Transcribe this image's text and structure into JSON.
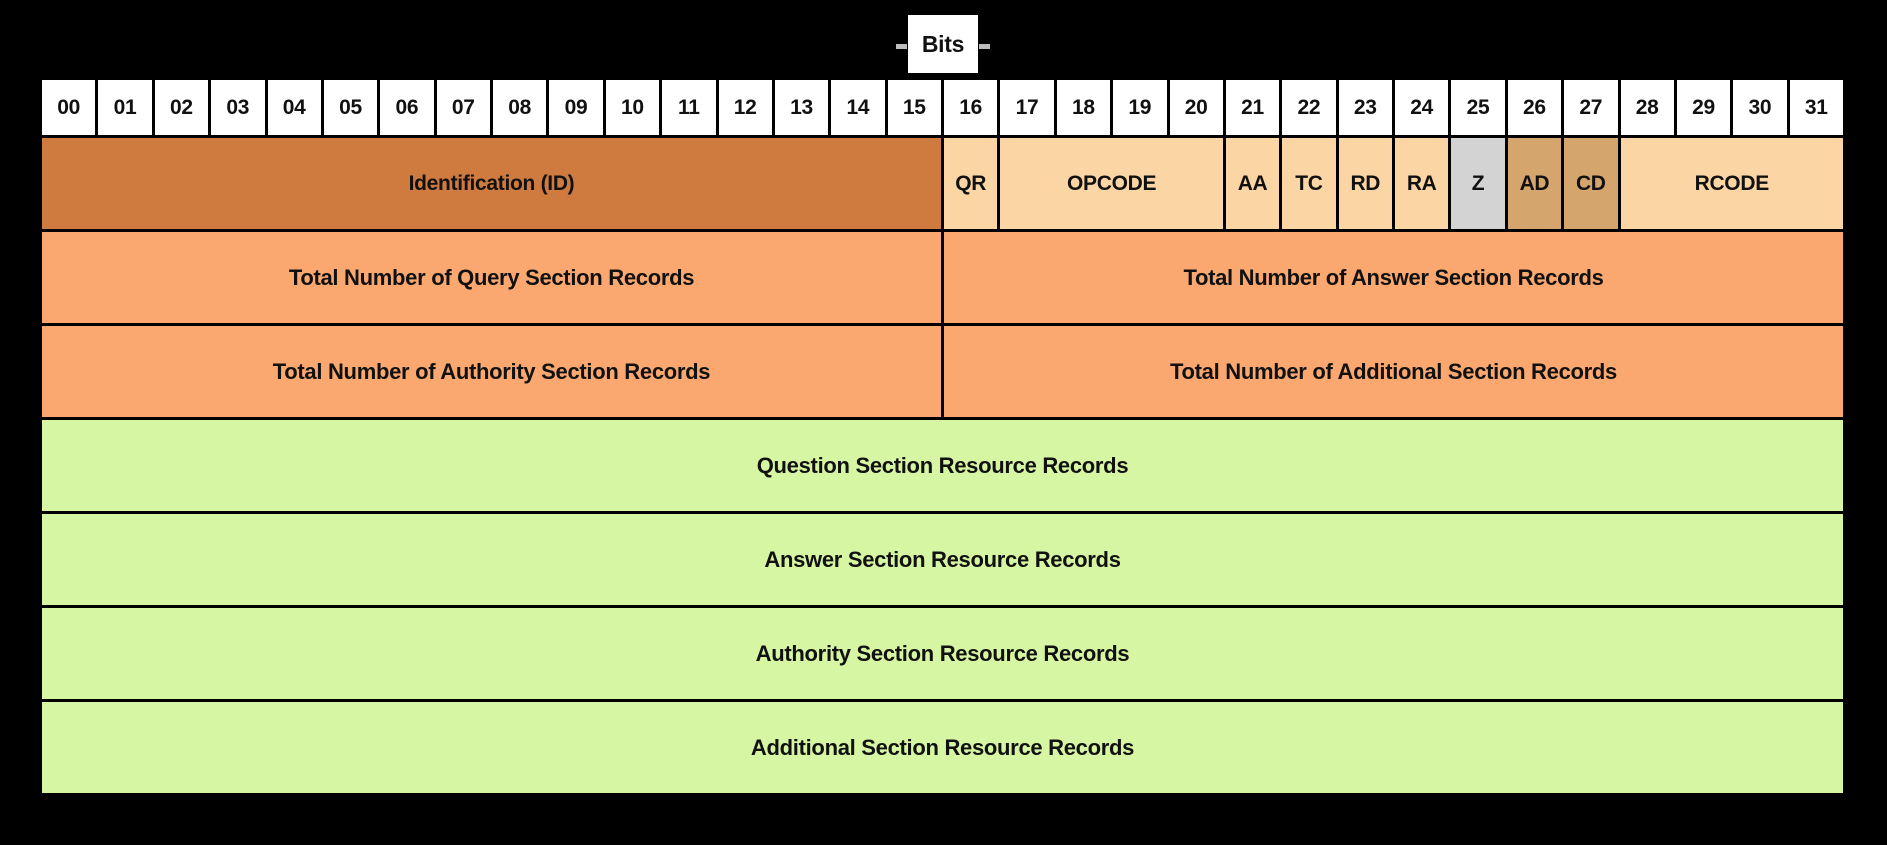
{
  "title": "Bits",
  "colors": {
    "background": "#000000",
    "bit_cell": "#ffffff",
    "id_field": "#cf7a3e",
    "flag_field": "#fcd5a4",
    "z_field": "#d3d3d3",
    "ad_cd_field": "#d4a56c",
    "count_row": "#faa870",
    "record_row": "#d7f6a3",
    "text": "#111111"
  },
  "bit_numbers": [
    "00",
    "01",
    "02",
    "03",
    "04",
    "05",
    "06",
    "07",
    "08",
    "09",
    "10",
    "11",
    "12",
    "13",
    "14",
    "15",
    "16",
    "17",
    "18",
    "19",
    "20",
    "21",
    "22",
    "23",
    "24",
    "25",
    "26",
    "27",
    "28",
    "29",
    "30",
    "31"
  ],
  "header_fields": [
    {
      "label": "Identification (ID)",
      "span": 16,
      "color_key": "id_field"
    },
    {
      "label": "QR",
      "span": 1,
      "color_key": "flag_field"
    },
    {
      "label": "OPCODE",
      "span": 4,
      "color_key": "flag_field"
    },
    {
      "label": "AA",
      "span": 1,
      "color_key": "flag_field"
    },
    {
      "label": "TC",
      "span": 1,
      "color_key": "flag_field"
    },
    {
      "label": "RD",
      "span": 1,
      "color_key": "flag_field"
    },
    {
      "label": "RA",
      "span": 1,
      "color_key": "flag_field"
    },
    {
      "label": "Z",
      "span": 1,
      "color_key": "z_field"
    },
    {
      "label": "AD",
      "span": 1,
      "color_key": "ad_cd_field"
    },
    {
      "label": "CD",
      "span": 1,
      "color_key": "ad_cd_field"
    },
    {
      "label": "RCODE",
      "span": 4,
      "color_key": "flag_field"
    }
  ],
  "count_fields": [
    {
      "label": "Total Number of Query Section Records",
      "span": 16
    },
    {
      "label": "Total Number of Answer Section Records",
      "span": 16
    },
    {
      "label": "Total Number of Authority Section Records",
      "span": 16
    },
    {
      "label": "Total Number of Additional Section Records",
      "span": 16
    }
  ],
  "record_rows": [
    {
      "label": "Question Section Resource Records"
    },
    {
      "label": "Answer Section Resource Records"
    },
    {
      "label": "Authority Section Resource Records"
    },
    {
      "label": "Additional Section Resource Records"
    }
  ]
}
